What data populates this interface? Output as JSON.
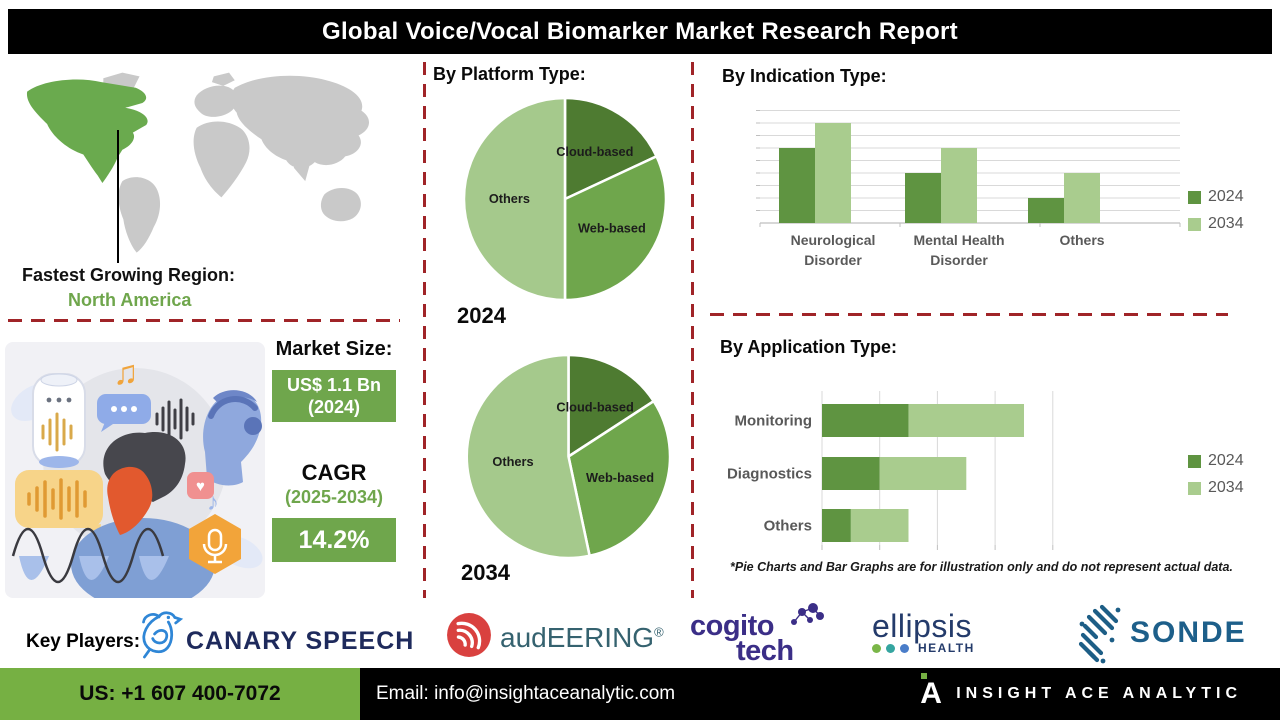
{
  "title": "Global Voice/Vocal Biomarker Market Research Report",
  "left": {
    "region_label": "Fastest Growing Region:",
    "region_value": "North America",
    "market_size_label": "Market Size:",
    "market_size_value": "US$ 1.1 Bn",
    "market_size_year": "(2024)",
    "cagr_label": "CAGR",
    "cagr_period": "(2025-2034)",
    "cagr_value": "14.2%"
  },
  "sections": {
    "platform_title": "By Platform Type:",
    "indication_title": "By  Indication Type:",
    "application_title": "By Application Type:",
    "footnote": "*Pie Charts and Bar Graphs are for illustration only and do not represent actual data."
  },
  "colors": {
    "dark_green": "#4e7b31",
    "mid_green": "#6fa64c",
    "light_green": "#a5c98c",
    "bar_dark": "#5f9441",
    "bar_light": "#a9cc8e",
    "dashed_red": "#a02428",
    "footer_green": "#76b043",
    "map_gray": "#c9c9c9",
    "map_highlight": "#6aaa4e"
  },
  "chart_data": [
    {
      "id": "platform-2024",
      "type": "pie",
      "title": "By Platform Type:",
      "year_label": "2024",
      "slices": [
        {
          "label": "Cloud-based",
          "pct": 18,
          "start_deg": 0,
          "end_deg": 65,
          "color": "#4e7b31"
        },
        {
          "label": "Web-based",
          "pct": 32,
          "start_deg": 65,
          "end_deg": 180,
          "color": "#6fa64c"
        },
        {
          "label": "Others",
          "pct": 50,
          "start_deg": 180,
          "end_deg": 360,
          "color": "#a5c98c"
        }
      ]
    },
    {
      "id": "platform-2034",
      "type": "pie",
      "title": "By Platform Type:",
      "year_label": "2034",
      "slices": [
        {
          "label": "Cloud-based",
          "pct": 16,
          "start_deg": 0,
          "end_deg": 57,
          "color": "#4e7b31"
        },
        {
          "label": "Web-based",
          "pct": 31,
          "start_deg": 57,
          "end_deg": 168,
          "color": "#6fa64c"
        },
        {
          "label": "Others",
          "pct": 53,
          "start_deg": 168,
          "end_deg": 360,
          "color": "#a5c98c"
        }
      ]
    },
    {
      "id": "indication",
      "type": "bar",
      "title": "By  Indication Type:",
      "categories": [
        [
          "Neurological",
          "Disorder"
        ],
        [
          "Mental Health",
          "Disorder"
        ],
        [
          "Others"
        ]
      ],
      "series": [
        {
          "name": "2024",
          "color": "#5f9441",
          "values": [
            6,
            4,
            2
          ]
        },
        {
          "name": "2034",
          "color": "#a9cc8e",
          "values": [
            8,
            6,
            4
          ]
        }
      ],
      "ylim": [
        0,
        9
      ],
      "grid": true,
      "legend_position": "right",
      "note": "illustrative values read from gridline units"
    },
    {
      "id": "application",
      "type": "stacked-bar-horizontal",
      "title": "By Application Type:",
      "categories": [
        "Monitoring",
        "Diagnostics",
        "Others"
      ],
      "series": [
        {
          "name": "2024",
          "color": "#5f9441",
          "values": [
            1.5,
            1.0,
            0.5
          ]
        },
        {
          "name": "2034",
          "color": "#a9cc8e",
          "values": [
            2.0,
            1.5,
            1.0
          ]
        }
      ],
      "xlim": [
        0,
        4.8
      ],
      "grid": true,
      "legend_position": "right",
      "note": "illustrative values in gridline units; totals 3.5 / 2.5 / 1.5"
    }
  ],
  "key_players": {
    "label": "Key Players:",
    "canary": "CANARY SPEECH",
    "audeering": "audEERING",
    "audeering_reg": "®",
    "cogito_line1": "cogito",
    "cogito_line2": "tech",
    "ellipsis_word": "ellipsis",
    "ellipsis_sub": "HEALTH",
    "sonde": "SONDE"
  },
  "icons": {
    "canary-bird-icon": "blue outlined bird",
    "audeering-icon": "red circle with white sound-wave arcs",
    "cogito-network-icon": "purple dot network",
    "ellipsis-dots-icon": "green teal blue dots",
    "sonde-icon": "blue dotted S stripes",
    "insight-ace-icon": "white A with green dot",
    "microphone-icon": "mic in orange hexagon",
    "heart-icon": "heart badge",
    "music-note-icon": "music notes",
    "waveform-icon": "voice waveform"
  },
  "footer": {
    "phone": "US: +1 607 400-7072",
    "email": "Email: info@insightaceanalytic.com",
    "brand": "INSIGHT ACE ANALYTIC"
  }
}
